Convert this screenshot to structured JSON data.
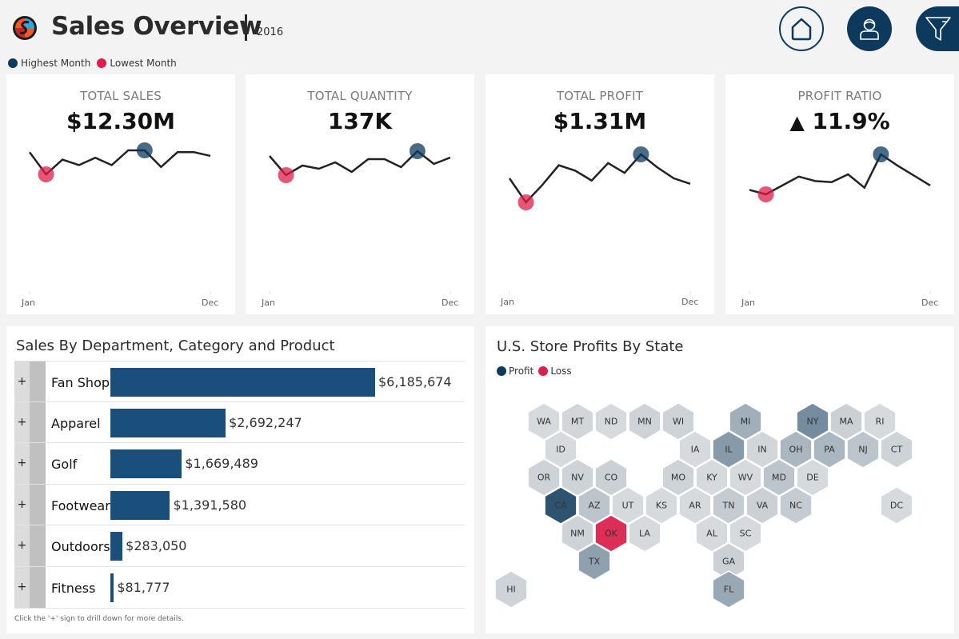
{
  "header": {
    "title": "Sales Overview",
    "year": "2016",
    "buttons": [
      {
        "name": "home-button",
        "icon": "home-icon"
      },
      {
        "name": "user-button",
        "icon": "user-icon"
      },
      {
        "name": "filter-button",
        "icon": "filter-icon"
      }
    ]
  },
  "legend": {
    "highest": "Highest Month",
    "lowest": "Lowest Month",
    "colors": {
      "highest": "#0d3a5c",
      "lowest": "#dc1e4a"
    }
  },
  "kpis": [
    {
      "label": "TOTAL SALES",
      "value": "$12.30M",
      "axis_start": "Jan",
      "axis_end": "Dec",
      "trend": [
        22,
        10,
        18,
        15,
        19,
        15,
        23,
        23,
        14,
        22,
        22,
        20
      ],
      "highest_index": 7,
      "lowest_index": 1
    },
    {
      "label": "TOTAL QUANTITY",
      "value": "137K",
      "axis_start": "Jan",
      "axis_end": "Dec",
      "trend": [
        18,
        6,
        12,
        10,
        14,
        8,
        16,
        16,
        11,
        21,
        13,
        17
      ],
      "highest_index": 9,
      "lowest_index": 1
    },
    {
      "label": "TOTAL PROFIT",
      "value": "$1.31M",
      "axis_start": "Jan",
      "axis_end": "Dec",
      "trend": [
        40,
        18,
        34,
        52,
        47,
        38,
        54,
        45,
        62,
        50,
        40,
        35
      ],
      "highest_index": 8,
      "lowest_index": 1
    },
    {
      "label": "PROFIT RATIO",
      "value": "11.9%",
      "indicator": "up-triangle",
      "axis_start": "Jan",
      "axis_end": "Dec",
      "trend": [
        30,
        26,
        34,
        42,
        38,
        37,
        44,
        32,
        62,
        52,
        43,
        34
      ],
      "highest_index": 8,
      "lowest_index": 1
    }
  ],
  "sales_by_department": {
    "title": "Sales By Department, Category and Product",
    "expand_label": "+",
    "rows": [
      {
        "name": "Fan Shop",
        "value": 6185674,
        "display": "$6,185,674"
      },
      {
        "name": "Apparel",
        "value": 2692247,
        "display": "$2,692,247"
      },
      {
        "name": "Golf",
        "value": 1669489,
        "display": "$1,669,489"
      },
      {
        "name": "Footwear",
        "value": 1391580,
        "display": "$1,391,580"
      },
      {
        "name": "Outdoors",
        "value": 283050,
        "display": "$283,050"
      },
      {
        "name": "Fitness",
        "value": 81777,
        "display": "$81,777"
      }
    ],
    "bar_color": "#1a4f7d",
    "footnote": "Click the '+' sign to drill down for more details."
  },
  "store_profits": {
    "title": "U.S. Store Profits By State",
    "legend": {
      "profit": "Profit",
      "loss": "Loss"
    },
    "colors": {
      "profit": "#0d3a5c",
      "loss": "#dc1e4a"
    },
    "states": [
      {
        "abbr": "WA",
        "level": 0.05
      },
      {
        "abbr": "MT",
        "level": 0.08
      },
      {
        "abbr": "ND",
        "level": 0.05
      },
      {
        "abbr": "MN",
        "level": 0.1
      },
      {
        "abbr": "WI",
        "level": 0.1
      },
      {
        "abbr": "MI",
        "level": 0.35
      },
      {
        "abbr": "NY",
        "level": 0.6
      },
      {
        "abbr": "MA",
        "level": 0.12
      },
      {
        "abbr": "RI",
        "level": 0.05
      },
      {
        "abbr": "ID",
        "level": 0.05
      },
      {
        "abbr": "IA",
        "level": 0.05
      },
      {
        "abbr": "IL",
        "level": 0.5
      },
      {
        "abbr": "IN",
        "level": 0.08
      },
      {
        "abbr": "OH",
        "level": 0.3
      },
      {
        "abbr": "PA",
        "level": 0.3
      },
      {
        "abbr": "NJ",
        "level": 0.2
      },
      {
        "abbr": "CT",
        "level": 0.1
      },
      {
        "abbr": "OR",
        "level": 0.1
      },
      {
        "abbr": "NV",
        "level": 0.1
      },
      {
        "abbr": "CO",
        "level": 0.12
      },
      {
        "abbr": "MO",
        "level": 0.1
      },
      {
        "abbr": "KY",
        "level": 0.05
      },
      {
        "abbr": "WV",
        "level": 0.05
      },
      {
        "abbr": "MD",
        "level": 0.2
      },
      {
        "abbr": "DE",
        "level": 0.05
      },
      {
        "abbr": "CA",
        "level": 1.0
      },
      {
        "abbr": "AZ",
        "level": 0.2
      },
      {
        "abbr": "UT",
        "level": 0.05
      },
      {
        "abbr": "KS",
        "level": 0.05
      },
      {
        "abbr": "AR",
        "level": 0.05
      },
      {
        "abbr": "TN",
        "level": 0.15
      },
      {
        "abbr": "VA",
        "level": 0.12
      },
      {
        "abbr": "NC",
        "level": 0.15
      },
      {
        "abbr": "DC",
        "level": 0.05
      },
      {
        "abbr": "NM",
        "level": 0.1
      },
      {
        "abbr": "OK",
        "level": -1.0
      },
      {
        "abbr": "LA",
        "level": 0.05
      },
      {
        "abbr": "AL",
        "level": 0.05
      },
      {
        "abbr": "SC",
        "level": 0.05
      },
      {
        "abbr": "TX",
        "level": 0.45
      },
      {
        "abbr": "GA",
        "level": 0.12
      },
      {
        "abbr": "HI",
        "level": 0.1
      },
      {
        "abbr": "FL",
        "level": 0.4
      }
    ]
  }
}
